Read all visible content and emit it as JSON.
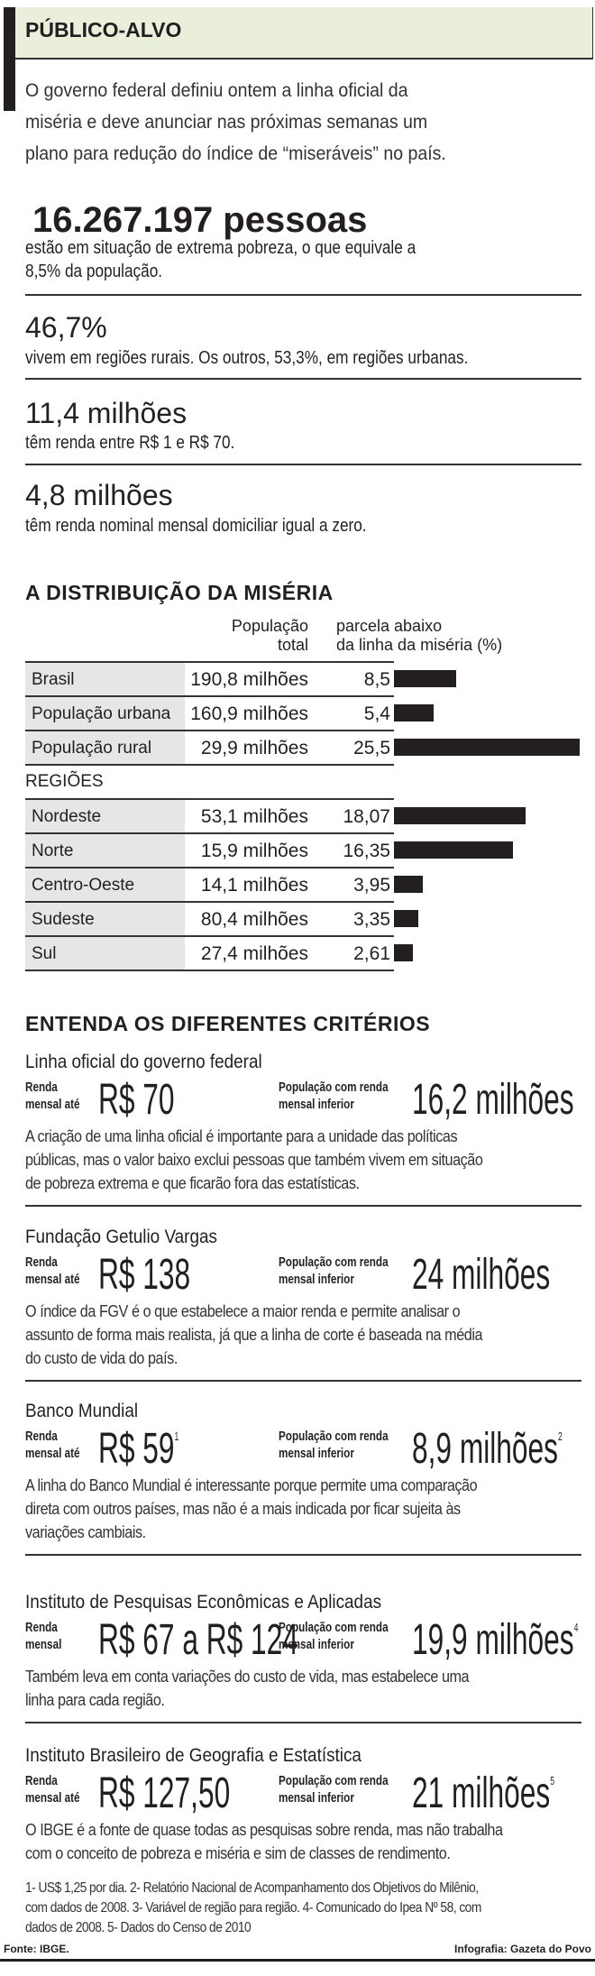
{
  "header": {
    "title": "PÚBLICO-ALVO"
  },
  "intro": [
    "O governo federal definiu ontem a linha oficial da",
    "miséria e deve anunciar nas próximas semanas um",
    "plano para redução do índice de “miseráveis” no país."
  ],
  "highlights": [
    {
      "value": "16.267.197 pessoas",
      "text": [
        "estão em situação de extrema pobreza, o que equivale a",
        "8,5% da população."
      ]
    },
    {
      "value": "46,7%",
      "text": [
        "vivem em regiões rurais. Os outros, 53,3%, em regiões urbanas."
      ]
    },
    {
      "value": "11,4 milhões",
      "text": [
        "têm renda entre R$ 1 e R$ 70."
      ]
    },
    {
      "value": "4,8 milhões",
      "text": [
        "têm renda nominal mensal domiciliar igual a zero."
      ]
    }
  ],
  "distribution": {
    "title": "A DISTRIBUIÇÃO DA MISÉRIA",
    "col_population": [
      "População",
      "total"
    ],
    "col_share": [
      "parcela abaixo",
      "da linha da miséria (%)"
    ],
    "regions_label": "REGIÕES",
    "bar_color": "#231f20",
    "national": [
      {
        "label": "Brasil",
        "population": "190,8 milhões",
        "share_text": "8,5",
        "share": 8.5
      },
      {
        "label": "População urbana",
        "population": "160,9 milhões",
        "share_text": "5,4",
        "share": 5.4
      },
      {
        "label": "População rural",
        "population": "29,9 milhões",
        "share_text": "25,5",
        "share": 25.5
      }
    ],
    "regions": [
      {
        "label": "Nordeste",
        "population": "53,1 milhões",
        "share_text": "18,07",
        "share": 18.07
      },
      {
        "label": "Norte",
        "population": "15,9 milhões",
        "share_text": "16,35",
        "share": 16.35
      },
      {
        "label": "Centro-Oeste",
        "population": "14,1 milhões",
        "share_text": "3,95",
        "share": 3.95
      },
      {
        "label": "Sudeste",
        "population": "80,4 milhões",
        "share_text": "3,35",
        "share": 3.35
      },
      {
        "label": "Sul",
        "population": "27,4 milhões",
        "share_text": "2,61",
        "share": 2.61
      }
    ]
  },
  "criteria": {
    "title": "ENTENDA OS DIFERENTES CRITÉRIOS",
    "items": [
      {
        "name": "Linha oficial do governo federal",
        "income_label": [
          "Renda",
          "mensal até"
        ],
        "income": "R$ 70",
        "income_note": "",
        "pop_label": [
          "População com renda",
          "mensal inferior"
        ],
        "population": "16,2 milhões",
        "pop_note": "",
        "text": [
          "A criação de uma linha oficial é importante para a unidade das políticas",
          "públicas, mas o valor baixo exclui pessoas que também vivem em situação",
          "de pobreza extrema e que ficarão fora das estatísticas."
        ]
      },
      {
        "name": "Fundação Getulio Vargas",
        "income_label": [
          "Renda",
          "mensal até"
        ],
        "income": "R$ 138",
        "income_note": "",
        "pop_label": [
          "População com renda",
          "mensal inferior"
        ],
        "population": "24 milhões",
        "pop_note": "",
        "text": [
          "O índice da FGV é o que estabelece a maior renda e permite analisar o",
          "assunto de forma mais realista, já que a linha de corte é baseada na média",
          "do custo de vida do país."
        ]
      },
      {
        "name": "Banco Mundial",
        "income_label": [
          "Renda",
          "mensal até"
        ],
        "income": "R$ 59",
        "income_note": "1",
        "pop_label": [
          "População com renda",
          "mensal inferior"
        ],
        "population": "8,9 milhões",
        "pop_note": "2",
        "text": [
          "A linha do Banco Mundial é interessante porque permite uma comparação",
          "direta com outros países, mas não é a mais indicada por ficar sujeita às",
          "variações cambiais."
        ]
      },
      {
        "name": "Instituto de Pesquisas Econômicas e Aplicadas",
        "income_label": [
          "Renda",
          "mensal"
        ],
        "income": "R$ 67 a R$ 124",
        "income_note": "",
        "pop_label": [
          "População com renda",
          "mensal inferior"
        ],
        "population": "19,9 milhões",
        "pop_note": "4",
        "text": [
          "Também leva em conta variações do custo de vida, mas estabelece uma",
          "linha para cada região."
        ]
      },
      {
        "name": "Instituto Brasileiro de Geografia e Estatística",
        "income_label": [
          "Renda",
          "mensal até"
        ],
        "income": "R$ 127,50",
        "income_note": "",
        "pop_label": [
          "População com renda",
          "mensal inferior"
        ],
        "population": "21 milhões",
        "pop_note": "5",
        "text": [
          "O IBGE é a fonte de quase todas as pesquisas sobre renda, mas não trabalha",
          "com o conceito de pobreza e miséria e sim de classes de rendimento."
        ]
      }
    ]
  },
  "footnotes": [
    "1- US$ 1,25 por dia. 2- Relatório Nacional de Acompanhamento dos Objetivos do Milênio,",
    "com dados de 2008. 3- Variável de região para região. 4- Comunicado do Ipea Nº 58, com",
    "dados de 2008. 5- Dados do Censo de 2010"
  ],
  "source": "Fonte: IBGE.",
  "credit": "Infografia: Gazeta do Povo"
}
